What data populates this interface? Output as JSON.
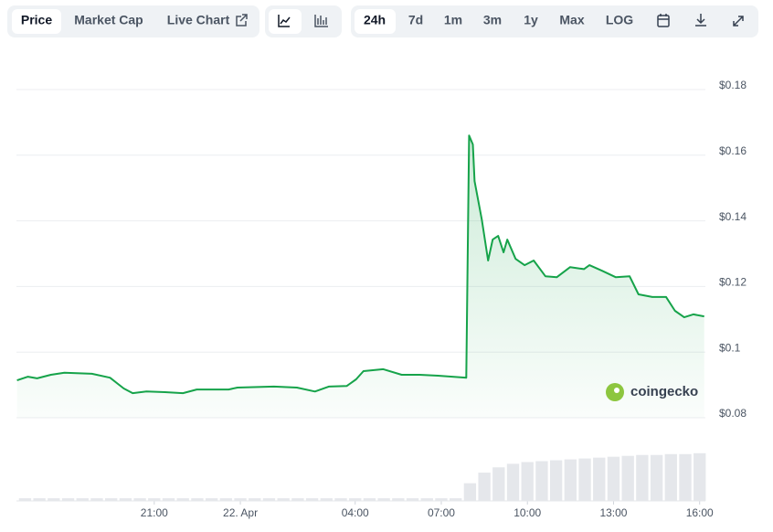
{
  "toolbar": {
    "tabs": [
      "Price",
      "Market Cap",
      "Live Chart"
    ],
    "ranges": [
      "24h",
      "7d",
      "1m",
      "3m",
      "1y",
      "Max",
      "LOG"
    ]
  },
  "watermark": "coingecko",
  "chart_data": {
    "type": "line",
    "grid": true,
    "x": [
      -7.78,
      -7.4,
      -7.08,
      -6.6,
      -6.13,
      -5.17,
      -4.54,
      -4.06,
      -3.75,
      -3.27,
      -2.63,
      -2.0,
      -1.52,
      -0.41,
      -0.1,
      1.17,
      1.97,
      2.6,
      3.08,
      3.71,
      4.03,
      4.29,
      4.98,
      5.62,
      6.25,
      6.89,
      7.87,
      7.97,
      8.1,
      8.16,
      8.41,
      8.63,
      8.79,
      8.98,
      9.17,
      9.3,
      9.59,
      9.9,
      10.22,
      10.63,
      11.02,
      11.49,
      11.97,
      12.16,
      12.6,
      13.08,
      13.56,
      13.87,
      14.35,
      14.83,
      15.14,
      15.46,
      15.78,
      16.16
    ],
    "series": [
      {
        "color": "#16a34a",
        "values": [
          0.0914,
          0.0925,
          0.092,
          0.0931,
          0.0937,
          0.0934,
          0.0922,
          0.0889,
          0.0875,
          0.088,
          0.0878,
          0.0875,
          0.0886,
          0.0886,
          0.0892,
          0.0895,
          0.0892,
          0.088,
          0.0895,
          0.0897,
          0.0917,
          0.0942,
          0.0948,
          0.0931,
          0.0931,
          0.0928,
          0.0922,
          0.166,
          0.1633,
          0.1521,
          0.1404,
          0.1279,
          0.1343,
          0.1354,
          0.1304,
          0.1343,
          0.1284,
          0.1265,
          0.1279,
          0.1231,
          0.1228,
          0.1259,
          0.1253,
          0.1265,
          0.1248,
          0.1228,
          0.1231,
          0.1176,
          0.1168,
          0.1168,
          0.1126,
          0.1106,
          0.1115,
          0.1109
        ]
      }
    ],
    "volume": {
      "color": "#e5e7eb",
      "vlim": [
        0,
        60
      ],
      "x": [
        -7.5,
        -7,
        -6.5,
        -6,
        -5.5,
        -5,
        -4.5,
        -4,
        -3.5,
        -3,
        -2.5,
        -2,
        -1.5,
        -1,
        -0.5,
        0,
        0.5,
        1,
        1.5,
        2,
        2.5,
        3,
        3.5,
        4,
        4.5,
        5,
        5.5,
        6,
        6.5,
        7,
        7.5,
        8,
        8.5,
        9,
        9.5,
        10,
        10.5,
        11,
        11.5,
        12,
        12.5,
        13,
        13.5,
        14,
        14.5,
        15,
        15.5,
        16
      ],
      "values": [
        3,
        3,
        3,
        3,
        3,
        3,
        3,
        3,
        3,
        3,
        3,
        3,
        3,
        3,
        3,
        3,
        3,
        3,
        3,
        3,
        3,
        3,
        3,
        3,
        3,
        3,
        3,
        3,
        3,
        3,
        3,
        20,
        32,
        38,
        42,
        44,
        45,
        46,
        47,
        48,
        49,
        50,
        51,
        52,
        52,
        53,
        53,
        54
      ]
    },
    "xlim": [
      -7.8,
      16.2
    ],
    "xticks": [
      {
        "value": -3,
        "label": "21:00"
      },
      {
        "value": 0,
        "label": "22. Apr"
      },
      {
        "value": 4,
        "label": "04:00"
      },
      {
        "value": 7,
        "label": "07:00"
      },
      {
        "value": 10,
        "label": "10:00"
      },
      {
        "value": 13,
        "label": "13:00"
      },
      {
        "value": 16,
        "label": "16:00"
      }
    ],
    "ylim": [
      0.08,
      0.18
    ],
    "yticks": [
      {
        "value": 0.18,
        "label": "$0.18"
      },
      {
        "value": 0.16,
        "label": "$0.16"
      },
      {
        "value": 0.14,
        "label": "$0.14"
      },
      {
        "value": 0.12,
        "label": "$0.12"
      },
      {
        "value": 0.1,
        "label": "$0.1"
      },
      {
        "value": 0.08,
        "label": "$0.08"
      }
    ]
  }
}
